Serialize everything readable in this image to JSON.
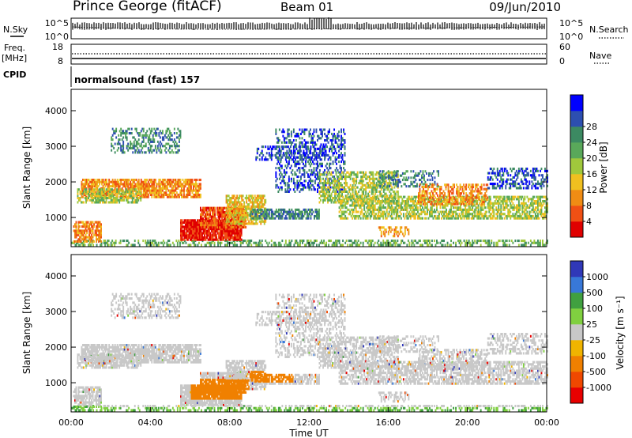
{
  "header": {
    "station": "Prince George (fitACF)",
    "beam": "Beam 01",
    "date": "09/Jun/2010"
  },
  "top_panels": {
    "nsky_label": "N.Sky",
    "nsky_ticks": [
      "10^5",
      "10^0"
    ],
    "nsearch_label": "N.Search",
    "nsearch_ticks": [
      "10^5",
      "10^0"
    ],
    "freq_label": "Freq.",
    "freq_unit": "[MHz]",
    "freq_ticks": [
      "18",
      "8"
    ],
    "nave_label": "Nave",
    "nave_ticks": [
      "60",
      "0"
    ],
    "cpid_label": "CPID",
    "cpid_value": "normalsound (fast) 157"
  },
  "colors": {
    "power": [
      "#0000ff",
      "#2d4fb0",
      "#3c8a62",
      "#59a85a",
      "#a0c83c",
      "#f0c020",
      "#f08c14",
      "#f05014",
      "#e00000"
    ],
    "velocity": [
      "#3038b8",
      "#3878d8",
      "#40a040",
      "#80d040",
      "#c8c8c8",
      "#f0b400",
      "#f08000",
      "#f04800",
      "#e80000"
    ],
    "gray": "#c8c8c8"
  },
  "chart_data": [
    {
      "type": "heatmap",
      "name": "power",
      "ylabel": "Slant Range [km]",
      "yticks": [
        1000,
        2000,
        3000,
        4000
      ],
      "ylim": [
        180,
        4600
      ],
      "xlim": [
        0,
        24
      ],
      "colorbar_label": "Power [dB]",
      "colorbar_ticks": [
        "4",
        "8",
        "12",
        "16",
        "20",
        "24",
        "28"
      ]
    },
    {
      "type": "heatmap",
      "name": "velocity",
      "xlabel": "Time UT",
      "ylabel": "Slant Range [km]",
      "yticks": [
        1000,
        2000,
        3000,
        4000
      ],
      "ylim": [
        180,
        4600
      ],
      "xlim": [
        0,
        24
      ],
      "xticks": [
        "00:00",
        "04:00",
        "08:00",
        "12:00",
        "16:00",
        "20:00",
        "00:00"
      ],
      "colorbar_label": "Velocity [m s⁻¹]",
      "colorbar_ticks": [
        "1000",
        "500",
        "100",
        "25",
        "-25",
        "-100",
        "-500",
        "-1000"
      ]
    }
  ]
}
